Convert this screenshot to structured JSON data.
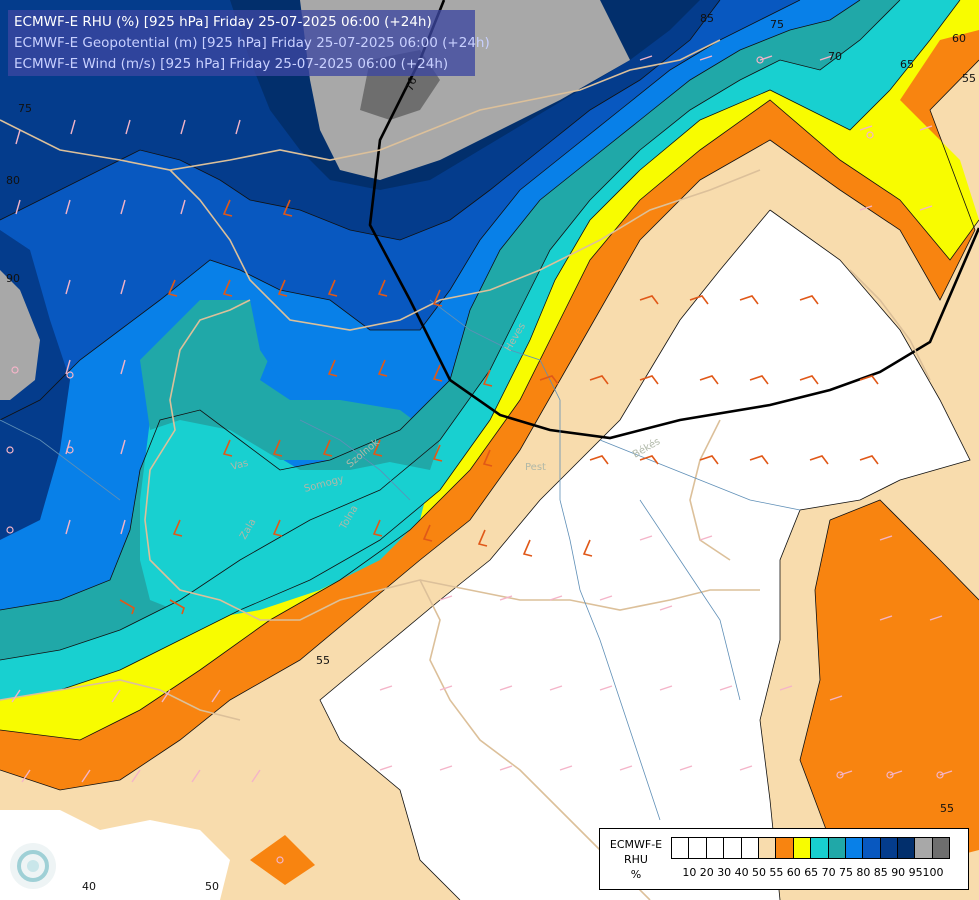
{
  "title": {
    "line1": "ECMWF-E RHU (%) [925 hPa] Friday 25-07-2025 06:00 (+24h)",
    "line2": "ECMWF-E Geopotential (m) [925 hPa] Friday 25-07-2025 06:00 (+24h)",
    "line3": "ECMWF-E Wind (m/s) [925 hPa] Friday 25-07-2025 06:00 (+24h)"
  },
  "legend": {
    "title_model": "ECMWF-E",
    "title_var": "RHU",
    "title_unit": "%",
    "colors": [
      "#ffffff",
      "#ffffff",
      "#ffffff",
      "#ffffff",
      "#ffffff",
      "#f8dcad",
      "#f88410",
      "#f8fc00",
      "#18d0d0",
      "#20a8a8",
      "#0880e8",
      "#0858c0",
      "#043c8c",
      "#022f6c",
      "#a8a8a8",
      "#6e6e6e"
    ],
    "ticks": [
      "10",
      "20",
      "30",
      "40",
      "50",
      "55",
      "60",
      "65",
      "70",
      "75",
      "80",
      "85",
      "90",
      "95",
      "100"
    ]
  },
  "contour_labels": {
    "geo_76": "76",
    "rh_55a": "55",
    "rh_55b": "55",
    "rh_55c": "55",
    "rh_65": "65",
    "rh_60": "60",
    "rh_70": "70",
    "rh_75a": "75",
    "rh_75b": "75",
    "rh_80": "80",
    "rh_85": "85",
    "rh_90": "90",
    "rh_50": "50",
    "rh_40": "40"
  },
  "place_labels": {
    "vas": "Vas",
    "zala": "Zala",
    "somogy": "Somogy",
    "tolna": "Tolna",
    "pest": "Pest",
    "bekes": "Békés",
    "heves": "Heves",
    "szolnok": "Szolnok"
  },
  "colors": {
    "rh50": "#ffffff",
    "rh55": "#f8dcad",
    "rh60": "#f88410",
    "rh65": "#f8fc00",
    "rh70": "#18d0d0",
    "rh75": "#20a8a8",
    "rh80": "#0880e8",
    "rh85": "#0858c0",
    "rh90": "#043c8c",
    "rh95": "#022f6c",
    "rh100": "#a8a8a8"
  }
}
